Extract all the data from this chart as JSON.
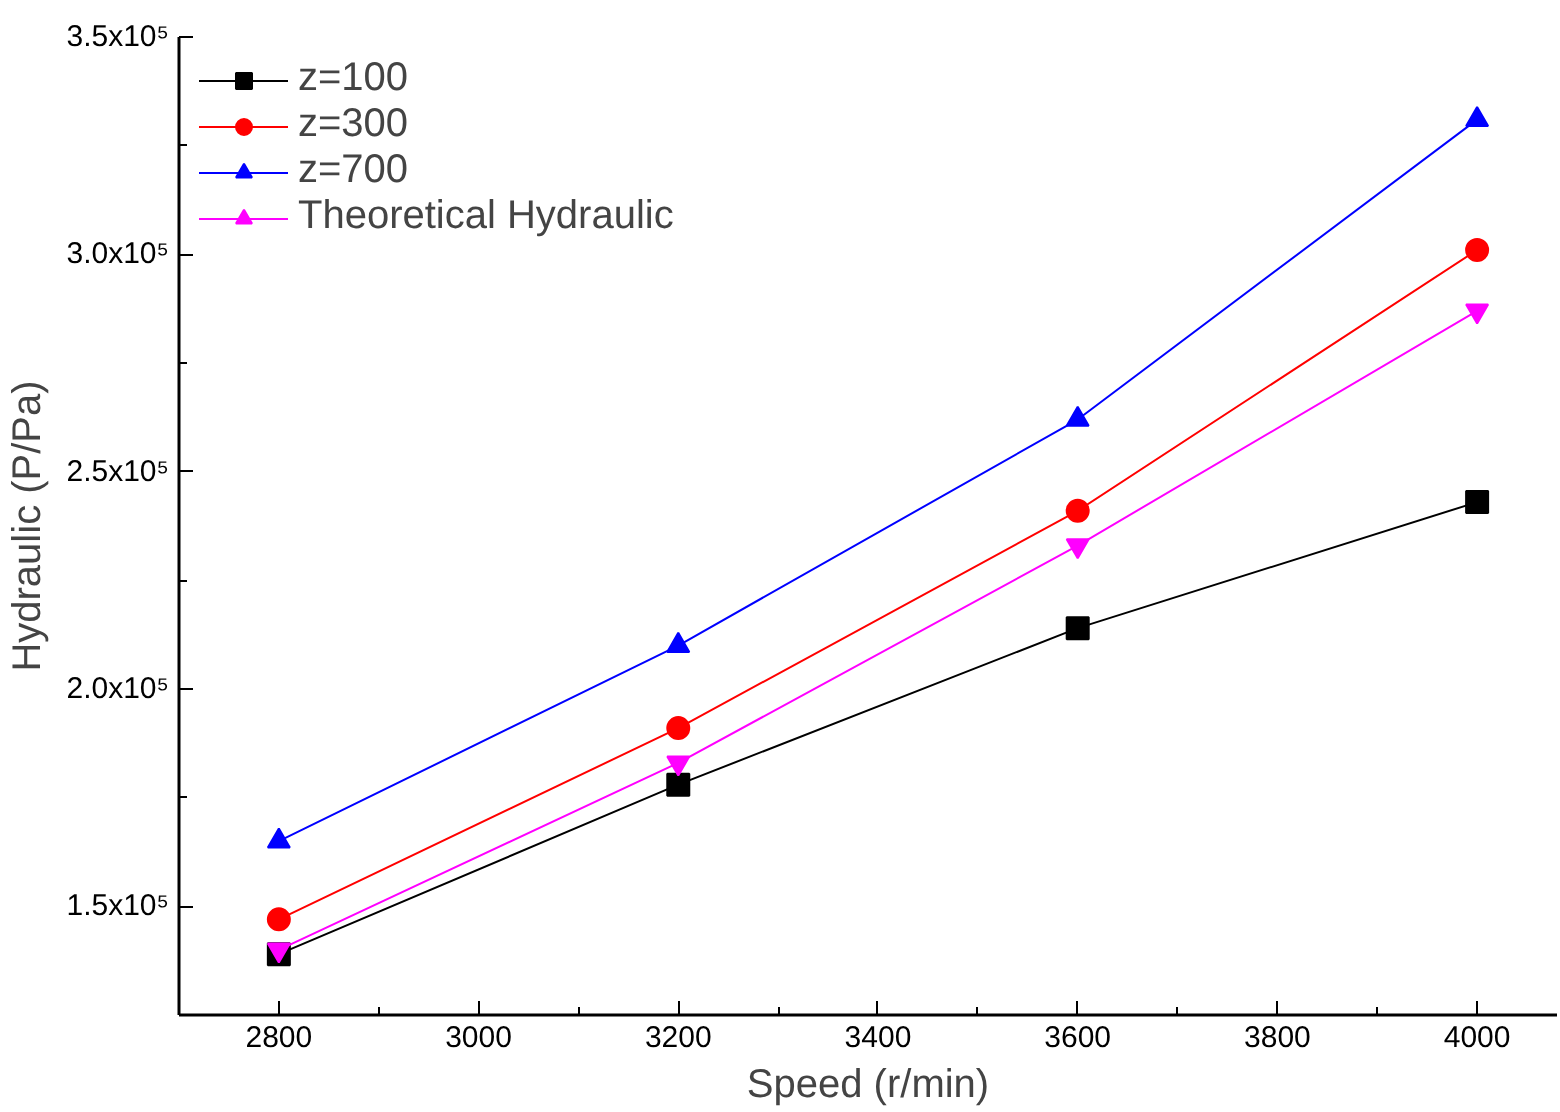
{
  "chart_data": {
    "type": "line",
    "xlabel": "Speed (r/min)",
    "ylabel": "Hydraulic (P/Pa)",
    "x": [
      2800,
      3200,
      3600,
      4000
    ],
    "series": [
      {
        "name": "z=100",
        "color": "#000000",
        "marker": "square",
        "values": [
          139000,
          178000,
          214000,
          243000
        ]
      },
      {
        "name": "z=300",
        "color": "#ff0000",
        "marker": "circle",
        "values": [
          147000,
          191000,
          241000,
          301000
        ]
      },
      {
        "name": "z=700",
        "color": "#0000ff",
        "marker": "triangle",
        "values": [
          165000,
          210000,
          262000,
          331000
        ]
      },
      {
        "name": "Theoretical Hydraulic",
        "color": "#ff00ff",
        "marker": "triangle",
        "values": [
          140000,
          183000,
          233000,
          287000
        ]
      }
    ],
    "xlim": [
      2700,
      4080
    ],
    "ylim": [
      125000,
      350000
    ],
    "xticks": [
      2800,
      3000,
      3200,
      3400,
      3600,
      3800,
      4000
    ],
    "yticks": [
      {
        "value": 150000,
        "label": "1.5x10⁵"
      },
      {
        "value": 200000,
        "label": "2.0x10⁵"
      },
      {
        "value": 250000,
        "label": "2.5x10⁵"
      },
      {
        "value": 300000,
        "label": "3.0x10⁵"
      },
      {
        "value": 350000,
        "label": "3.5x10⁵"
      }
    ],
    "grid": false,
    "legend": "top left",
    "line_style": "solid"
  }
}
